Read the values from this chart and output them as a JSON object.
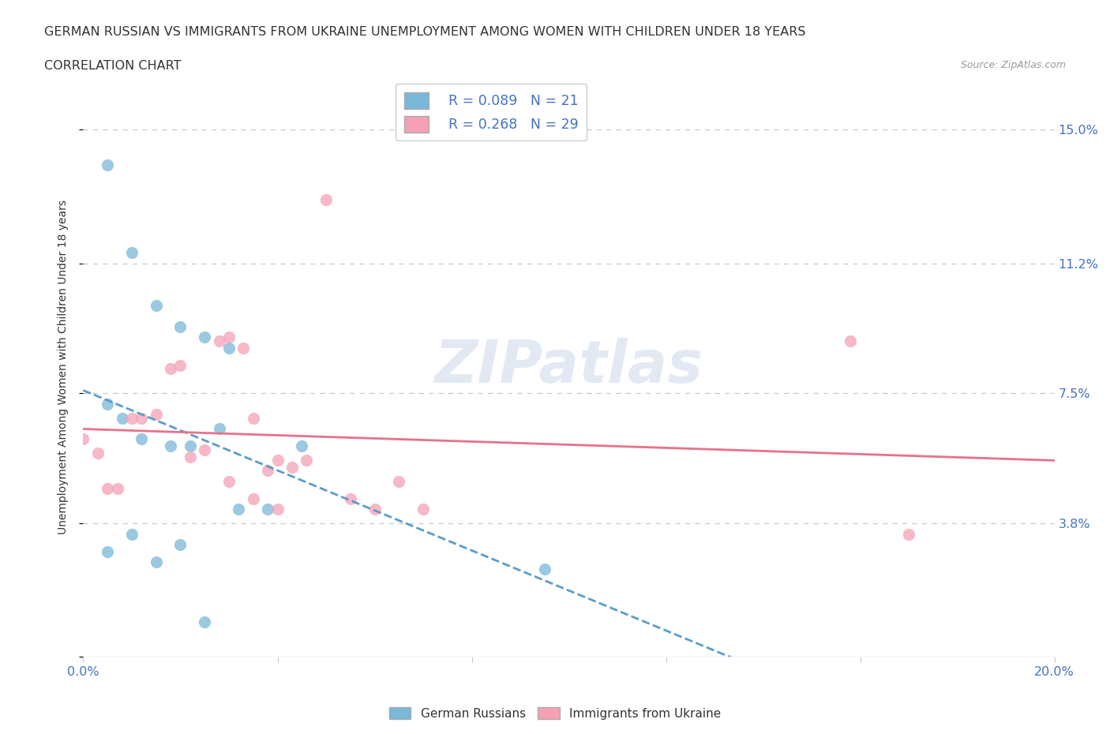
{
  "title_line1": "GERMAN RUSSIAN VS IMMIGRANTS FROM UKRAINE UNEMPLOYMENT AMONG WOMEN WITH CHILDREN UNDER 18 YEARS",
  "title_line2": "CORRELATION CHART",
  "source_text": "Source: ZipAtlas.com",
  "ylabel": "Unemployment Among Women with Children Under 18 years",
  "xlim": [
    0.0,
    0.2
  ],
  "ylim": [
    0.0,
    0.165
  ],
  "xticks": [
    0.0,
    0.04,
    0.08,
    0.12,
    0.16,
    0.2
  ],
  "xticklabels": [
    "0.0%",
    "",
    "",
    "",
    "",
    "20.0%"
  ],
  "ytick_positions": [
    0.0,
    0.038,
    0.075,
    0.112,
    0.15
  ],
  "ytick_labels": [
    "",
    "3.8%",
    "7.5%",
    "11.2%",
    "15.0%"
  ],
  "legend_r1": "R = 0.089",
  "legend_n1": "N = 21",
  "legend_r2": "R = 0.268",
  "legend_n2": "N = 29",
  "color_blue": "#7ab8d9",
  "color_pink": "#f5a0b5",
  "color_blue_line": "#5b9dc9",
  "color_pink_line": "#e8728a",
  "color_axis_label": "#4472c4",
  "color_grid": "#c8c8c8",
  "color_title": "#333333",
  "german_russian_x": [
    0.005,
    0.01,
    0.015,
    0.02,
    0.025,
    0.03,
    0.005,
    0.01,
    0.015,
    0.02,
    0.025,
    0.005,
    0.008,
    0.012,
    0.018,
    0.022,
    0.028,
    0.032,
    0.038,
    0.045,
    0.095
  ],
  "german_russian_y": [
    0.14,
    0.115,
    0.1,
    0.094,
    0.091,
    0.088,
    0.03,
    0.035,
    0.027,
    0.032,
    0.01,
    0.072,
    0.068,
    0.062,
    0.06,
    0.06,
    0.065,
    0.042,
    0.042,
    0.06,
    0.025
  ],
  "ukraine_x": [
    0.0,
    0.003,
    0.005,
    0.007,
    0.01,
    0.012,
    0.015,
    0.018,
    0.02,
    0.022,
    0.025,
    0.028,
    0.03,
    0.033,
    0.035,
    0.038,
    0.04,
    0.043,
    0.046,
    0.05,
    0.055,
    0.06,
    0.065,
    0.07,
    0.03,
    0.035,
    0.04,
    0.158,
    0.17
  ],
  "ukraine_y": [
    0.062,
    0.058,
    0.048,
    0.048,
    0.068,
    0.068,
    0.069,
    0.082,
    0.083,
    0.057,
    0.059,
    0.09,
    0.091,
    0.088,
    0.068,
    0.053,
    0.056,
    0.054,
    0.056,
    0.13,
    0.045,
    0.042,
    0.05,
    0.042,
    0.05,
    0.045,
    0.042,
    0.09,
    0.035
  ]
}
